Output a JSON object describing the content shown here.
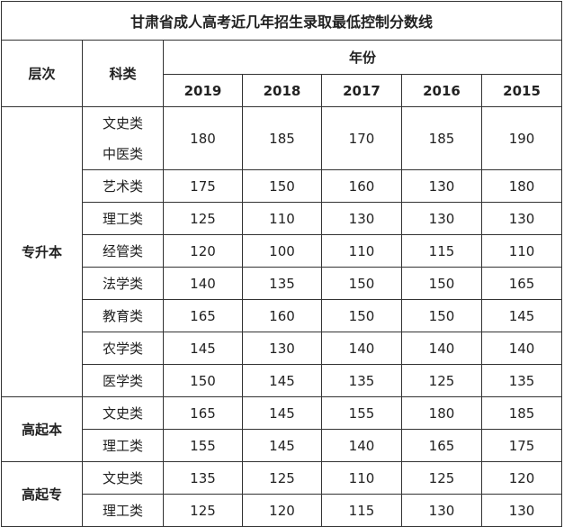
{
  "title": "甘肃省成人高考近几年招生录取最低控制分数线",
  "headers": {
    "level": "层次",
    "category": "科类",
    "year_group": "年份",
    "years": [
      "2019",
      "2018",
      "2017",
      "2016",
      "2015"
    ]
  },
  "groups": [
    {
      "level": "专升本",
      "rows": [
        {
          "category": [
            "文史类",
            "中医类"
          ],
          "scores": [
            "180",
            "185",
            "170",
            "185",
            "190"
          ]
        },
        {
          "category": [
            "艺术类"
          ],
          "scores": [
            "175",
            "150",
            "160",
            "130",
            "180"
          ]
        },
        {
          "category": [
            "理工类"
          ],
          "scores": [
            "125",
            "110",
            "130",
            "130",
            "130"
          ]
        },
        {
          "category": [
            "经管类"
          ],
          "scores": [
            "120",
            "100",
            "110",
            "115",
            "110"
          ]
        },
        {
          "category": [
            "法学类"
          ],
          "scores": [
            "140",
            "135",
            "150",
            "150",
            "165"
          ]
        },
        {
          "category": [
            "教育类"
          ],
          "scores": [
            "165",
            "160",
            "150",
            "150",
            "145"
          ]
        },
        {
          "category": [
            "农学类"
          ],
          "scores": [
            "145",
            "130",
            "140",
            "140",
            "140"
          ]
        },
        {
          "category": [
            "医学类"
          ],
          "scores": [
            "150",
            "145",
            "135",
            "125",
            "135"
          ]
        }
      ]
    },
    {
      "level": "高起本",
      "rows": [
        {
          "category": [
            "文史类"
          ],
          "scores": [
            "165",
            "145",
            "155",
            "180",
            "185"
          ]
        },
        {
          "category": [
            "理工类"
          ],
          "scores": [
            "155",
            "145",
            "140",
            "165",
            "175"
          ]
        }
      ]
    },
    {
      "level": "高起专",
      "rows": [
        {
          "category": [
            "文史类"
          ],
          "scores": [
            "135",
            "125",
            "110",
            "125",
            "120"
          ]
        },
        {
          "category": [
            "理工类"
          ],
          "scores": [
            "125",
            "120",
            "115",
            "130",
            "130"
          ]
        }
      ]
    }
  ]
}
